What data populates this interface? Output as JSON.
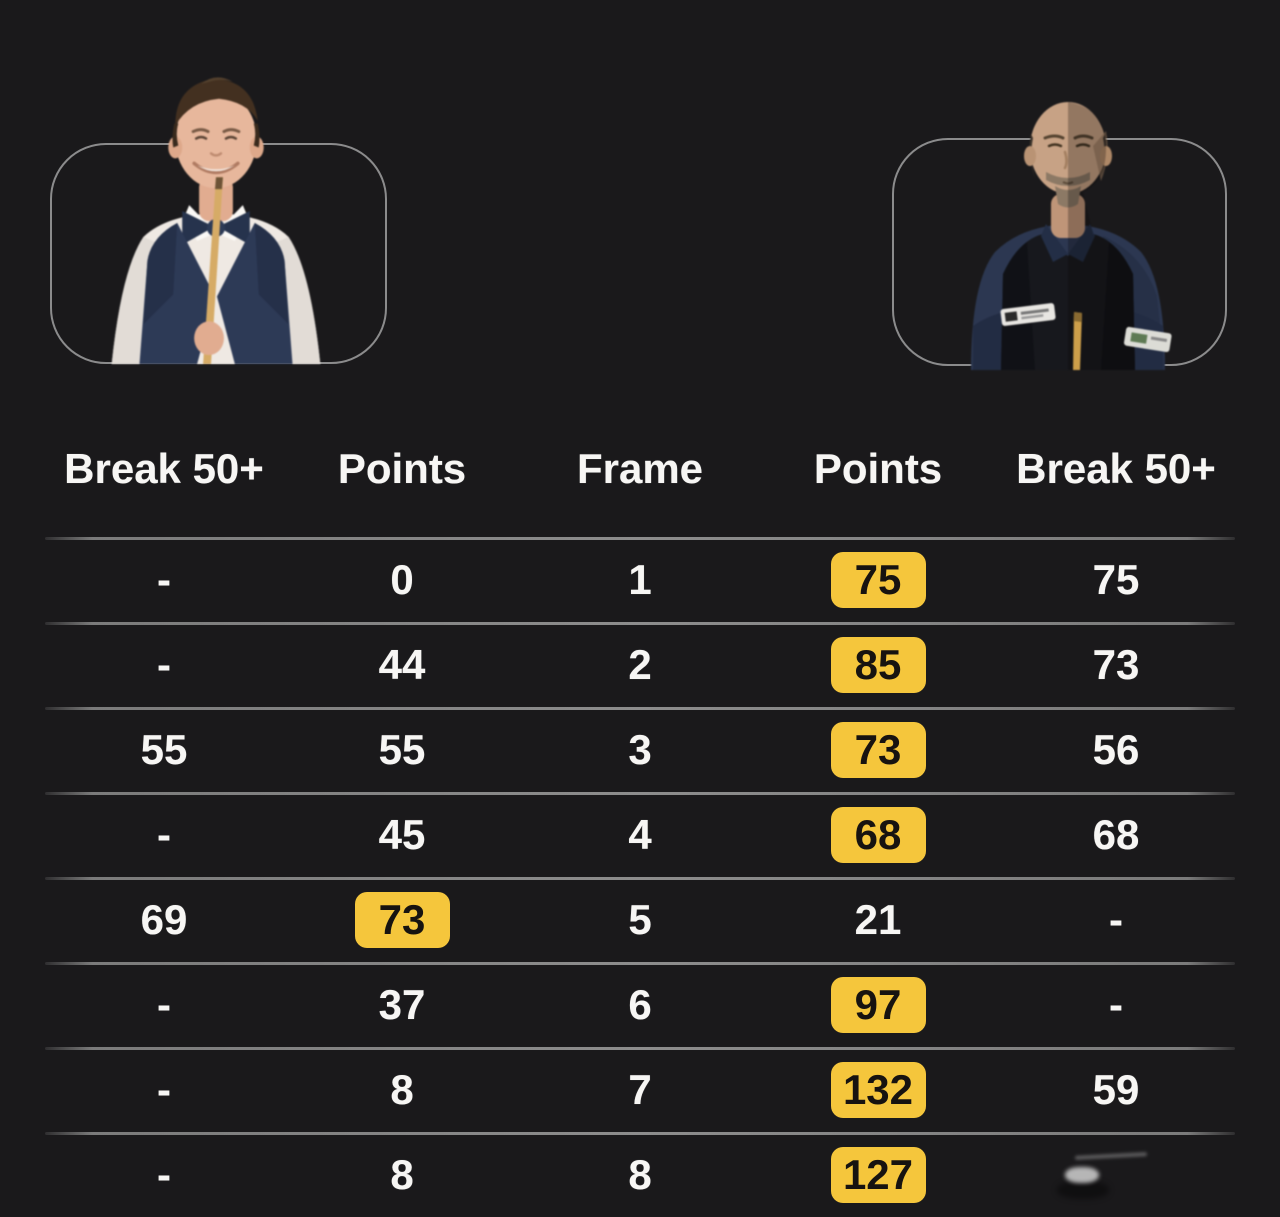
{
  "players": {
    "left_photo_desc": "snooker player in white shirt, navy waistcoat and bow tie holding cue",
    "right_photo_desc": "bald snooker player with goatee in dark waistcoat over navy shirt"
  },
  "scoreboard": {
    "columns": [
      "Break 50+",
      "Points",
      "Frame",
      "Points",
      "Break 50+"
    ],
    "rows": [
      {
        "break_l": "-",
        "points_l": "0",
        "frame": "1",
        "points_r": "75",
        "break_r": "75",
        "winner": "p2"
      },
      {
        "break_l": "-",
        "points_l": "44",
        "frame": "2",
        "points_r": "85",
        "break_r": "73",
        "winner": "p2"
      },
      {
        "break_l": "55",
        "points_l": "55",
        "frame": "3",
        "points_r": "73",
        "break_r": "56",
        "winner": "p2"
      },
      {
        "break_l": "-",
        "points_l": "45",
        "frame": "4",
        "points_r": "68",
        "break_r": "68",
        "winner": "p2"
      },
      {
        "break_l": "69",
        "points_l": "73",
        "frame": "5",
        "points_r": "21",
        "break_r": "-",
        "winner": "p1"
      },
      {
        "break_l": "-",
        "points_l": "37",
        "frame": "6",
        "points_r": "97",
        "break_r": "-",
        "winner": "p2"
      },
      {
        "break_l": "-",
        "points_l": "8",
        "frame": "7",
        "points_r": "132",
        "break_r": "59",
        "winner": "p2"
      },
      {
        "break_l": "-",
        "points_l": "8",
        "frame": "8",
        "points_r": "127",
        "break_r": "",
        "winner": "p2",
        "break_r_smudge": true
      }
    ]
  },
  "colors": {
    "background": "#1a191b",
    "highlight": "#f5c63c",
    "highlight_text": "#171310",
    "text": "#f7f6f4",
    "divider": "#8d8d8d"
  }
}
